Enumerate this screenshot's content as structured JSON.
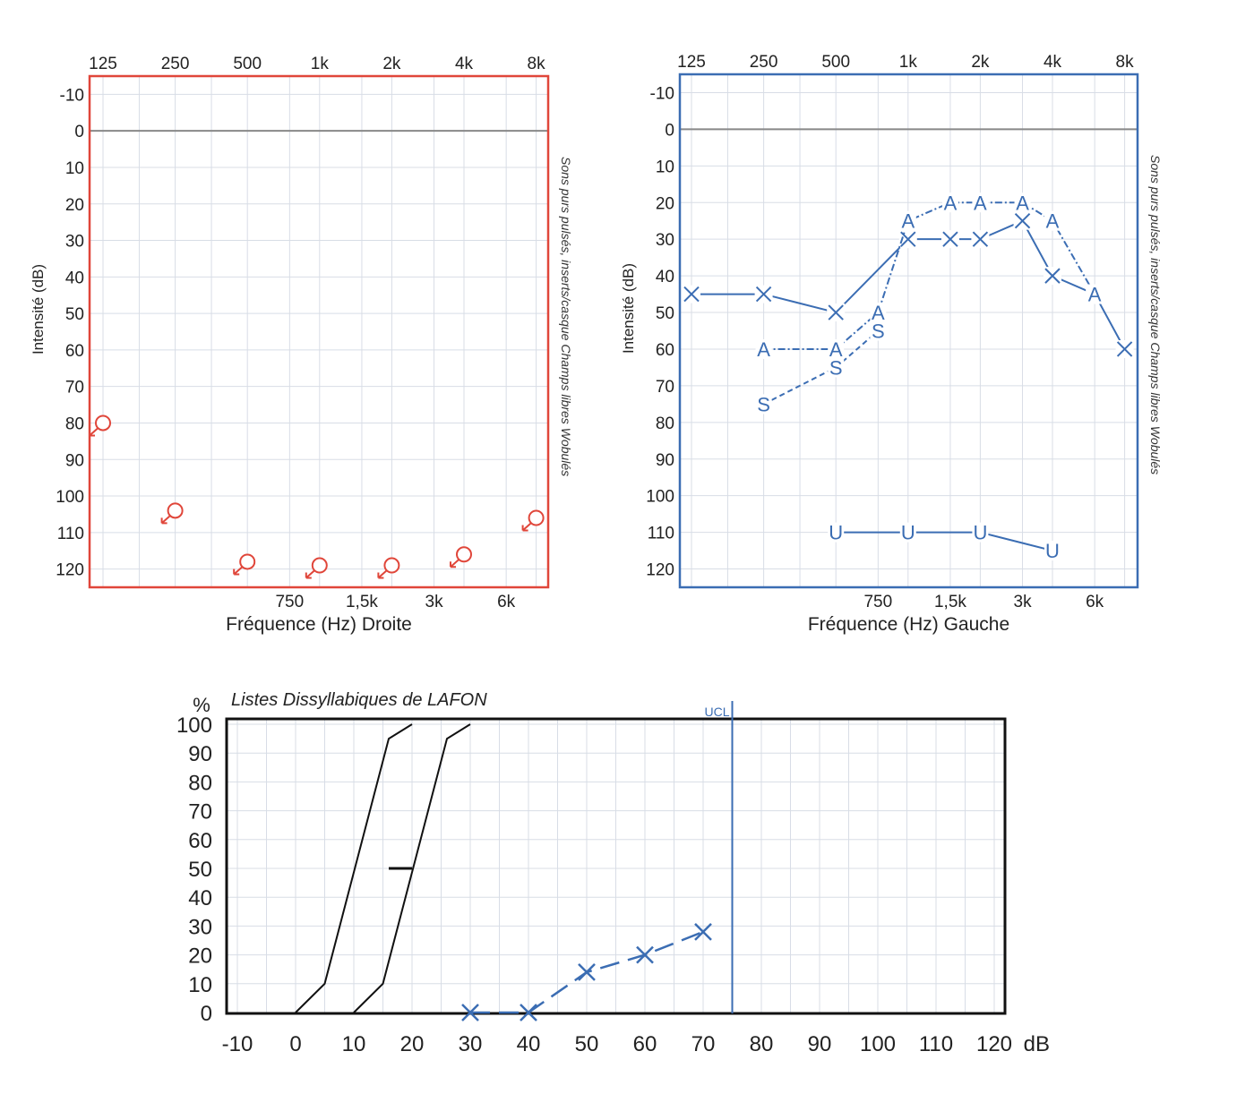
{
  "colors": {
    "right_ear": "#e0463a",
    "left_ear": "#3b6db3",
    "reference": "#111111",
    "grid": "#d8dde6",
    "zero_line": "#888888"
  },
  "chart_data": [
    {
      "type": "scatter",
      "ear": "Droite",
      "xlabel": "Fréquence (Hz) Droite",
      "ylabel": "Intensité (dB)",
      "side_label": "Sons purs pulsés, inserts/casque Champs libres Wobulés",
      "x_scale": "log",
      "top_ticks": [
        {
          "f": 125,
          "label": "125"
        },
        {
          "f": 250,
          "label": "250"
        },
        {
          "f": 500,
          "label": "500"
        },
        {
          "f": 1000,
          "label": "1k"
        },
        {
          "f": 2000,
          "label": "2k"
        },
        {
          "f": 4000,
          "label": "4k"
        },
        {
          "f": 8000,
          "label": "8k"
        }
      ],
      "bottom_ticks": [
        {
          "f": 750,
          "label": "750"
        },
        {
          "f": 1500,
          "label": "1,5k"
        },
        {
          "f": 3000,
          "label": "3k"
        },
        {
          "f": 6000,
          "label": "6k"
        }
      ],
      "y_ticks": [
        "-10",
        "0",
        "10",
        "20",
        "30",
        "40",
        "50",
        "60",
        "70",
        "80",
        "90",
        "100",
        "110",
        "120"
      ],
      "ylim": [
        -15,
        125
      ],
      "y_inverted": true,
      "grid": true,
      "frame_color": "#e0463a",
      "series": [
        {
          "symbol": "circle-arrow",
          "color": "#e0463a",
          "connected": false,
          "points": [
            [
              125,
              80
            ],
            [
              250,
              104
            ],
            [
              500,
              118
            ],
            [
              1000,
              119
            ],
            [
              2000,
              119
            ],
            [
              4000,
              116
            ],
            [
              8000,
              106
            ]
          ]
        }
      ]
    },
    {
      "type": "line",
      "ear": "Gauche",
      "xlabel": "Fréquence (Hz) Gauche",
      "ylabel": "Intensité (dB)",
      "side_label": "Sons purs pulsés, inserts/casque Champs libres Wobulés",
      "x_scale": "log",
      "top_ticks": [
        {
          "f": 125,
          "label": "125"
        },
        {
          "f": 250,
          "label": "250"
        },
        {
          "f": 500,
          "label": "500"
        },
        {
          "f": 1000,
          "label": "1k"
        },
        {
          "f": 2000,
          "label": "2k"
        },
        {
          "f": 4000,
          "label": "4k"
        },
        {
          "f": 8000,
          "label": "8k"
        }
      ],
      "bottom_ticks": [
        {
          "f": 750,
          "label": "750"
        },
        {
          "f": 1500,
          "label": "1,5k"
        },
        {
          "f": 3000,
          "label": "3k"
        },
        {
          "f": 6000,
          "label": "6k"
        }
      ],
      "y_ticks": [
        "-10",
        "0",
        "10",
        "20",
        "30",
        "40",
        "50",
        "60",
        "70",
        "80",
        "90",
        "100",
        "110",
        "120"
      ],
      "ylim": [
        -15,
        125
      ],
      "y_inverted": true,
      "grid": true,
      "frame_color": "#3b6db3",
      "series": [
        {
          "symbol": "X",
          "color": "#3b6db3",
          "dash": "solid",
          "points": [
            [
              125,
              45
            ],
            [
              250,
              45
            ],
            [
              500,
              50
            ],
            [
              1000,
              30
            ],
            [
              1500,
              30
            ],
            [
              2000,
              30
            ],
            [
              3000,
              25
            ],
            [
              4000,
              40
            ],
            [
              6000,
              45
            ],
            [
              8000,
              60
            ]
          ]
        },
        {
          "symbol": "A",
          "color": "#3b6db3",
          "dash": "dashdot",
          "points": [
            [
              250,
              60
            ],
            [
              500,
              60
            ],
            [
              750,
              50
            ],
            [
              1000,
              25
            ],
            [
              1500,
              20
            ],
            [
              2000,
              20
            ],
            [
              3000,
              20
            ],
            [
              4000,
              25
            ],
            [
              6000,
              45
            ]
          ]
        },
        {
          "symbol": "S",
          "color": "#3b6db3",
          "dash": "dashed",
          "points": [
            [
              250,
              75
            ],
            [
              500,
              65
            ],
            [
              750,
              55
            ]
          ]
        },
        {
          "symbol": "U",
          "color": "#3b6db3",
          "dash": "solid",
          "points": [
            [
              500,
              110
            ],
            [
              1000,
              110
            ],
            [
              2000,
              110
            ],
            [
              4000,
              115
            ]
          ]
        }
      ]
    },
    {
      "type": "line",
      "title": "Listes Dissyllabiques de LAFON",
      "xlabel": "dB",
      "ylabel": "%",
      "x_ticks": [
        -10,
        0,
        10,
        20,
        30,
        40,
        50,
        60,
        70,
        80,
        90,
        100,
        110,
        120
      ],
      "y_ticks": [
        0,
        10,
        20,
        30,
        40,
        50,
        60,
        70,
        80,
        90,
        100
      ],
      "xlim": [
        -12,
        122
      ],
      "ylim": [
        0,
        100
      ],
      "grid": true,
      "ucl": {
        "label": "UCL",
        "x": 75
      },
      "reference_curves": [
        {
          "color": "#111111",
          "points": [
            [
              0,
              0
            ],
            [
              2,
              4
            ],
            [
              5,
              10
            ],
            [
              16,
              95
            ],
            [
              20,
              100
            ]
          ]
        },
        {
          "color": "#111111",
          "points": [
            [
              10,
              0
            ],
            [
              12,
              4
            ],
            [
              15,
              10
            ],
            [
              26,
              95
            ],
            [
              30,
              100
            ]
          ]
        }
      ],
      "reference_marker": {
        "y": 50,
        "x_from": 16,
        "x_to": 20
      },
      "series": [
        {
          "symbol": "X",
          "color": "#3b6db3",
          "points": [
            [
              30,
              0
            ],
            [
              40,
              0
            ],
            [
              50,
              14
            ],
            [
              60,
              20
            ],
            [
              70,
              28
            ]
          ]
        }
      ]
    }
  ]
}
